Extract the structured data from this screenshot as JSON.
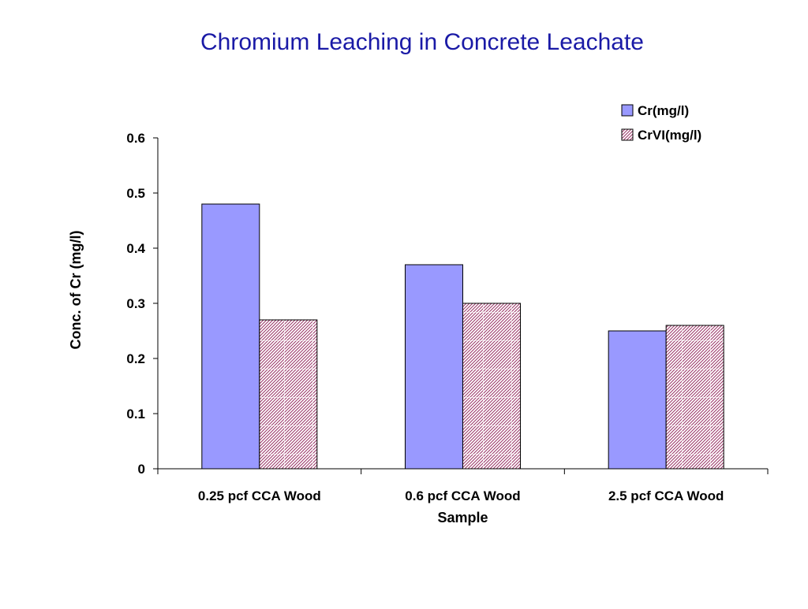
{
  "chart_data": {
    "type": "bar",
    "title": "Chromium Leaching in Concrete Leachate",
    "xlabel": "Sample",
    "ylabel": "Conc. of Cr (mg/l)",
    "categories": [
      "0.25 pcf CCA Wood",
      "0.6 pcf CCA Wood",
      "2.5 pcf CCA Wood"
    ],
    "series": [
      {
        "name": "Cr(mg/l)",
        "values": [
          0.48,
          0.37,
          0.25
        ],
        "color": "#9999ff",
        "pattern": "solid"
      },
      {
        "name": "CrVI(mg/l)",
        "values": [
          0.27,
          0.3,
          0.26
        ],
        "color": "#993366",
        "pattern": "crosshatch"
      }
    ],
    "ylim": [
      0,
      0.6
    ],
    "yticks": [
      "0",
      "0.1",
      "0.2",
      "0.3",
      "0.4",
      "0.5",
      "0.6"
    ],
    "grid": false,
    "legend_position": "top-right"
  }
}
